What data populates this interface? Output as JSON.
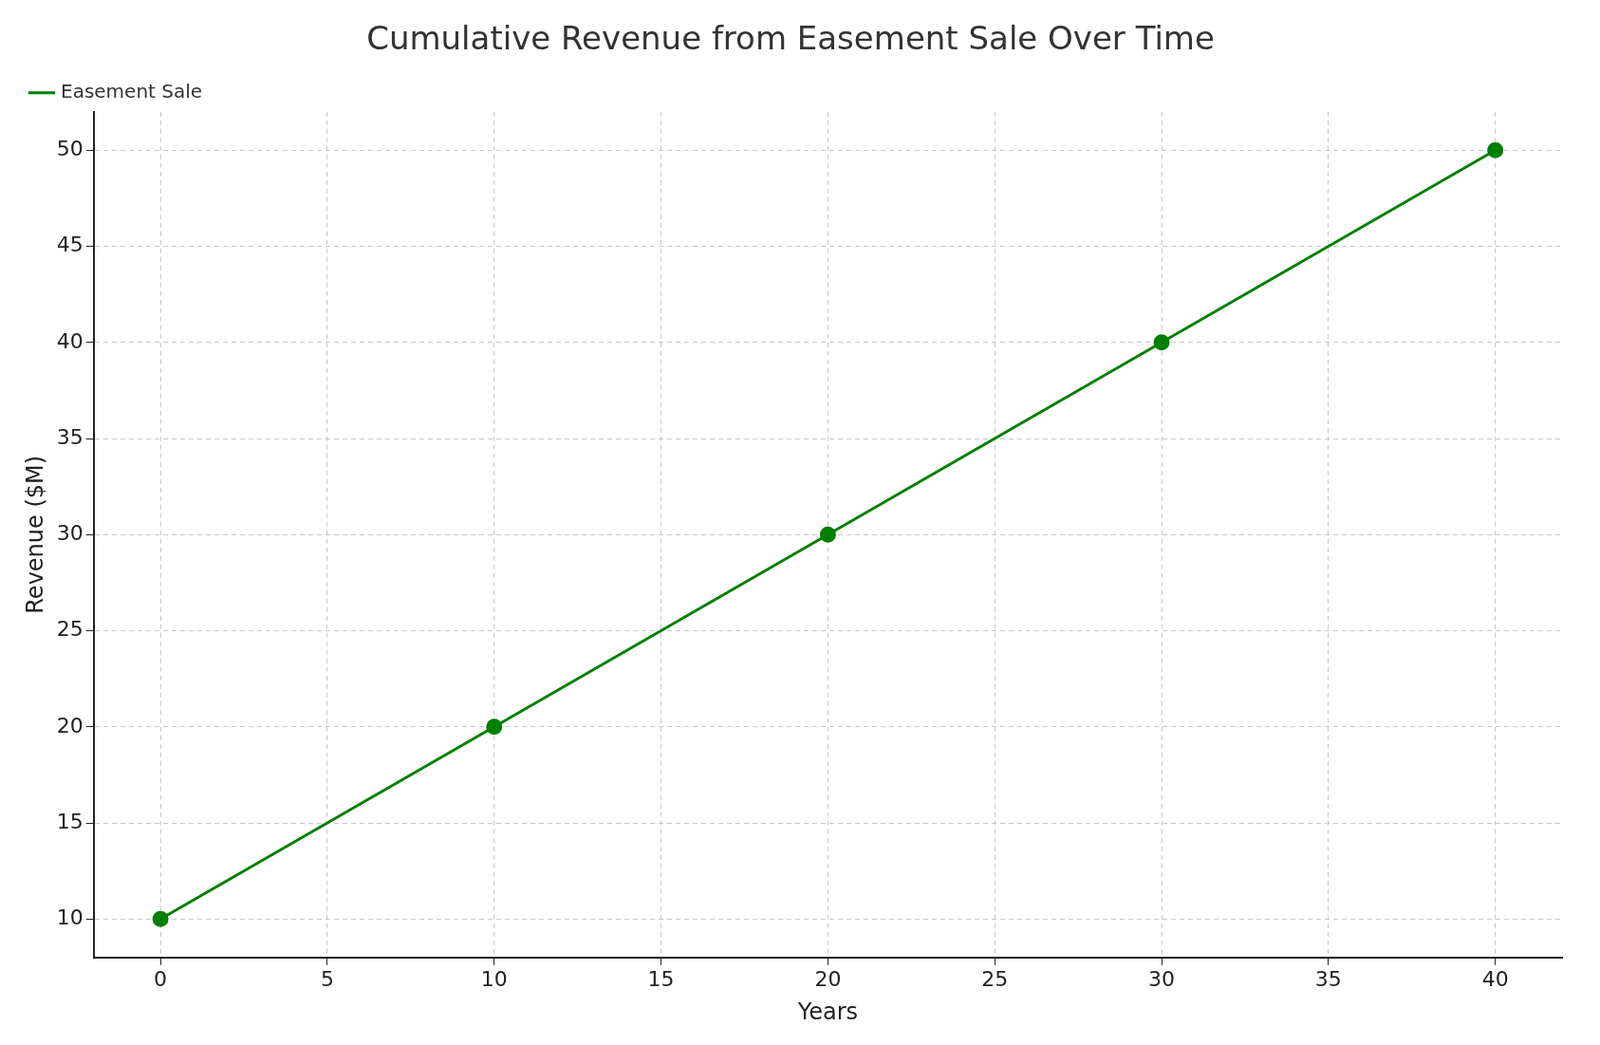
{
  "chart_data": {
    "type": "line",
    "title": "Cumulative Revenue from Easement Sale Over Time",
    "x_label": "Years",
    "y_label": "Revenue ($M)",
    "x": [
      0,
      10,
      20,
      30,
      40
    ],
    "series": [
      {
        "name": "Easement Sale",
        "color": "#008000",
        "marker": "circle",
        "line_style": "solid",
        "values": [
          10,
          20,
          30,
          40,
          50
        ]
      }
    ],
    "xlim": [
      -2,
      42
    ],
    "xticks": [
      0,
      5,
      10,
      15,
      20,
      25,
      30,
      35,
      40
    ],
    "ylim": [
      8,
      52
    ],
    "yticks": [
      10,
      15,
      20,
      25,
      30,
      35,
      40,
      45,
      50
    ],
    "grid": true,
    "legend": "upper left"
  }
}
